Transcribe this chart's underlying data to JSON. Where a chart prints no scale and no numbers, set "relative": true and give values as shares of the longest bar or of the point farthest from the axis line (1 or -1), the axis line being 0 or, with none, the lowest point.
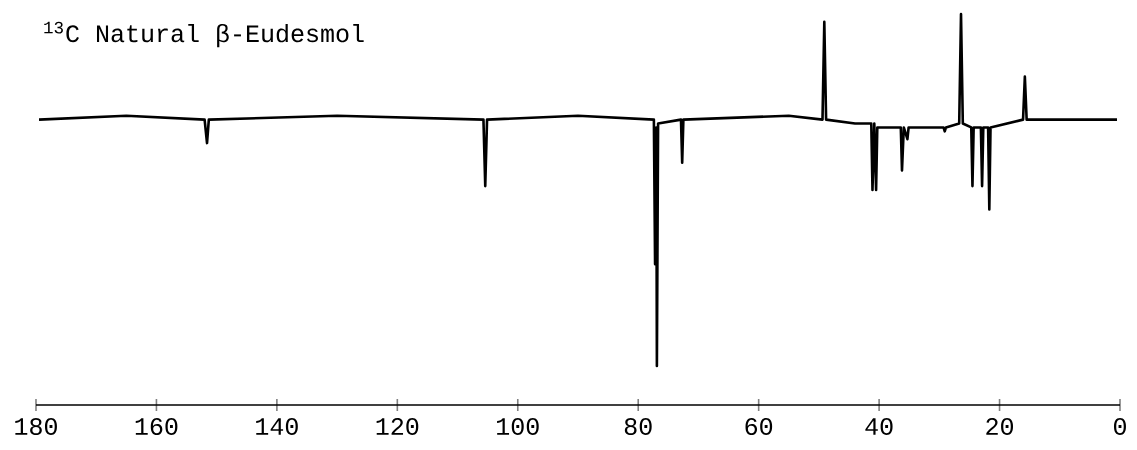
{
  "chart_data": {
    "type": "line",
    "title": "$^{13}$C Natural β-Eudesmol",
    "relative": true,
    "color": "#000000",
    "x": [
      179.5,
      165,
      152.0,
      151.6,
      151.3,
      130,
      105.7,
      105.4,
      105.1,
      90,
      77.4,
      77.2,
      77.0,
      76.9,
      76.7,
      72.9,
      72.7,
      72.5,
      55,
      49.4,
      49.1,
      48.8,
      44,
      41.3,
      41.1,
      40.8,
      40.5,
      40.3,
      36.4,
      36.2,
      35.9,
      35.3,
      35.1,
      29.3,
      29.1,
      28.9,
      26.7,
      26.4,
      26.1,
      24.7,
      24.5,
      24.3,
      23.1,
      22.9,
      22.7,
      21.9,
      21.7,
      21.5,
      16.1,
      15.8,
      15.5,
      0.5
    ],
    "values": [
      0.73,
      0.74,
      0.73,
      0.67,
      0.73,
      0.74,
      0.73,
      0.56,
      0.73,
      0.74,
      0.73,
      0.36,
      0.71,
      0.1,
      0.72,
      0.73,
      0.62,
      0.73,
      0.74,
      0.73,
      0.98,
      0.73,
      0.72,
      0.72,
      0.55,
      0.72,
      0.55,
      0.71,
      0.71,
      0.6,
      0.71,
      0.68,
      0.71,
      0.71,
      0.7,
      0.71,
      0.72,
      1.0,
      0.72,
      0.71,
      0.56,
      0.71,
      0.71,
      0.56,
      0.71,
      0.71,
      0.5,
      0.71,
      0.73,
      0.84,
      0.73,
      0.73
    ],
    "xlim": [
      180,
      0
    ],
    "xticks": [
      180,
      160,
      140,
      120,
      100,
      80,
      60,
      40,
      20,
      0
    ]
  }
}
